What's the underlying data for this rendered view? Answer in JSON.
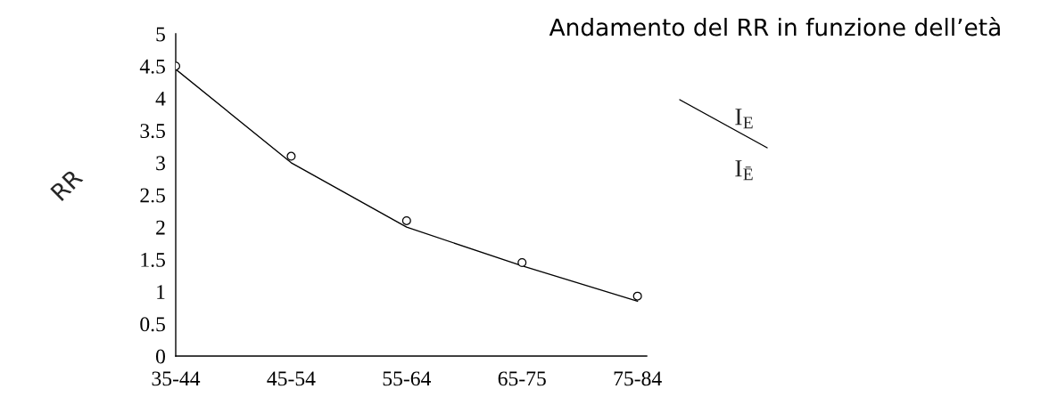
{
  "chart_data": {
    "type": "line",
    "title": "Andamento del RR in funzione dell’età",
    "ylabel": "RR",
    "categories": [
      "35-44",
      "45-54",
      "55-64",
      "65-75",
      "75-84"
    ],
    "series": [
      {
        "color": "#000000",
        "values": [
          4.45,
          3.0,
          2.0,
          1.4,
          0.85
        ]
      },
      {
        "type": "scatter",
        "color": "#000000",
        "values": [
          4.5,
          3.1,
          2.1,
          1.45,
          0.93
        ]
      }
    ],
    "ylim": [
      0,
      5
    ],
    "yticks": [
      0,
      0.5,
      1,
      1.5,
      2,
      2.5,
      3,
      3.5,
      4,
      4.5,
      5
    ],
    "annotations": [
      "I$_{E}$",
      "I$_{Ē}$"
    ],
    "grid": false,
    "legend": false
  }
}
